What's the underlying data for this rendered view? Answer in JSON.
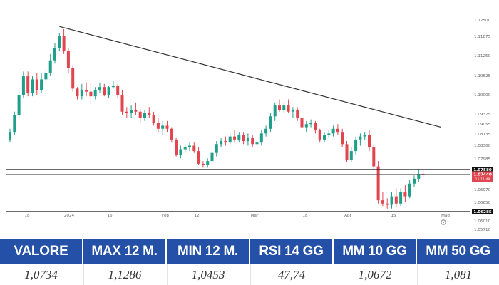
{
  "chart_data": {
    "type": "candlestick",
    "y_ticks": [
      "1.12500",
      "1.11875",
      "1.11250",
      "1.10625",
      "1.10000",
      "1.09375",
      "1.09055",
      "1.08735",
      "1.08360",
      "1.07985",
      "1.06970",
      "1.06650",
      "1.06010",
      "1.05710"
    ],
    "x_ticks": [
      "18",
      "2024",
      "16",
      "Feb",
      "12",
      "Mar",
      "18",
      "Apr",
      "15",
      "Mag"
    ],
    "grid": false,
    "candles": [
      [
        1.0855,
        1.089,
        1.0845,
        1.088
      ],
      [
        1.088,
        1.0945,
        1.087,
        1.0935
      ],
      [
        1.0935,
        1.102,
        1.0925,
        1.1
      ],
      [
        1.1,
        1.1075,
        1.099,
        1.106
      ],
      [
        1.106,
        1.1075,
        1.0995,
        1.1005
      ],
      [
        1.1005,
        1.106,
        1.0995,
        1.105
      ],
      [
        1.105,
        1.107,
        1.1,
        1.1015
      ],
      [
        1.1015,
        1.107,
        1.1005,
        1.105
      ],
      [
        1.105,
        1.108,
        1.104,
        1.107
      ],
      [
        1.107,
        1.113,
        1.106,
        1.111
      ],
      [
        1.111,
        1.1165,
        1.11,
        1.115
      ],
      [
        1.115,
        1.12,
        1.114,
        1.119
      ],
      [
        1.119,
        1.1215,
        1.113,
        1.114
      ],
      [
        1.114,
        1.115,
        1.107,
        1.1085
      ],
      [
        1.1085,
        1.1095,
        1.101,
        1.102
      ],
      [
        1.102,
        1.1025,
        1.0985,
        1.0995
      ],
      [
        1.0995,
        1.1035,
        1.0985,
        1.1015
      ],
      [
        1.1015,
        1.104,
        1.0995,
        1.101
      ],
      [
        1.101,
        1.1035,
        1.097,
        1.0995
      ],
      [
        1.0995,
        1.1025,
        1.0985,
        1.1015
      ],
      [
        1.1015,
        1.104,
        1.1005,
        1.1025
      ],
      [
        1.1025,
        1.1035,
        1.0995,
        1.1
      ],
      [
        1.1,
        1.103,
        1.099,
        1.1025
      ],
      [
        1.1025,
        1.1045,
        1.102,
        1.103
      ],
      [
        1.103,
        1.1035,
        1.099,
        1.1
      ],
      [
        1.1,
        1.1015,
        1.0935,
        1.0945
      ],
      [
        1.0945,
        1.096,
        1.0925,
        1.094
      ],
      [
        1.094,
        1.0965,
        1.0925,
        1.095
      ],
      [
        1.095,
        1.0975,
        1.0935,
        1.0945
      ],
      [
        1.0945,
        1.0955,
        1.091,
        1.0925
      ],
      [
        1.0925,
        1.095,
        1.0915,
        1.094
      ],
      [
        1.094,
        1.096,
        1.0925,
        1.0935
      ],
      [
        1.0935,
        1.0945,
        1.09,
        1.091
      ],
      [
        1.091,
        1.0925,
        1.088,
        1.089
      ],
      [
        1.089,
        1.0915,
        1.087,
        1.09
      ],
      [
        1.09,
        1.0915,
        1.088,
        1.089
      ],
      [
        1.089,
        1.0895,
        1.0845,
        1.0855
      ],
      [
        1.0855,
        1.086,
        1.0805,
        1.081
      ],
      [
        1.081,
        1.0835,
        1.08,
        1.0825
      ],
      [
        1.0825,
        1.084,
        1.0815,
        1.083
      ],
      [
        1.083,
        1.0845,
        1.082,
        1.0835
      ],
      [
        1.0835,
        1.0845,
        1.0815,
        1.082
      ],
      [
        1.082,
        1.083,
        1.0775,
        1.078
      ],
      [
        1.078,
        1.079,
        1.0765,
        1.0775
      ],
      [
        1.0775,
        1.08,
        1.0765,
        1.079
      ],
      [
        1.079,
        1.0825,
        1.078,
        1.0815
      ],
      [
        1.0815,
        1.085,
        1.0805,
        1.084
      ],
      [
        1.084,
        1.086,
        1.083,
        1.085
      ],
      [
        1.085,
        1.0865,
        1.0835,
        1.0845
      ],
      [
        1.0845,
        1.0875,
        1.0835,
        1.0865
      ],
      [
        1.0865,
        1.0885,
        1.0845,
        1.0855
      ],
      [
        1.0855,
        1.088,
        1.0845,
        1.087
      ],
      [
        1.087,
        1.088,
        1.084,
        1.085
      ],
      [
        1.085,
        1.0875,
        1.0835,
        1.086
      ],
      [
        1.086,
        1.087,
        1.083,
        1.084
      ],
      [
        1.084,
        1.0855,
        1.083,
        1.0845
      ],
      [
        1.0845,
        1.0885,
        1.0835,
        1.0875
      ],
      [
        1.0875,
        1.09,
        1.0865,
        1.089
      ],
      [
        1.089,
        1.094,
        1.088,
        1.093
      ],
      [
        1.093,
        1.0975,
        1.0915,
        1.0965
      ],
      [
        1.0965,
        1.0985,
        1.0945,
        1.095
      ],
      [
        1.095,
        1.0975,
        1.094,
        1.0965
      ],
      [
        1.0965,
        1.0985,
        1.094,
        1.0945
      ],
      [
        1.0945,
        1.096,
        1.0925,
        1.095
      ],
      [
        1.095,
        1.096,
        1.0915,
        1.0925
      ],
      [
        1.0925,
        1.0935,
        1.0885,
        1.0895
      ],
      [
        1.0895,
        1.0915,
        1.088,
        1.0905
      ],
      [
        1.0905,
        1.092,
        1.0895,
        1.091
      ],
      [
        1.091,
        1.0915,
        1.0875,
        1.0885
      ],
      [
        1.0885,
        1.089,
        1.0845,
        1.0855
      ],
      [
        1.0855,
        1.088,
        1.0845,
        1.087
      ],
      [
        1.087,
        1.0885,
        1.086,
        1.0875
      ],
      [
        1.0875,
        1.09,
        1.0865,
        1.089
      ],
      [
        1.089,
        1.0905,
        1.087,
        1.088
      ],
      [
        1.088,
        1.089,
        1.083,
        1.084
      ],
      [
        1.084,
        1.085,
        1.0785,
        1.0795
      ],
      [
        1.0795,
        1.083,
        1.0785,
        1.082
      ],
      [
        1.082,
        1.0865,
        1.081,
        1.0855
      ],
      [
        1.0855,
        1.0875,
        1.0835,
        1.0865
      ],
      [
        1.0865,
        1.088,
        1.0855,
        1.087
      ],
      [
        1.087,
        1.0885,
        1.082,
        1.083
      ],
      [
        1.083,
        1.084,
        1.076,
        1.077
      ],
      [
        1.077,
        1.079,
        1.066,
        1.067
      ],
      [
        1.067,
        1.069,
        1.065,
        1.066
      ],
      [
        1.066,
        1.0675,
        1.064,
        1.0655
      ],
      [
        1.0655,
        1.069,
        1.064,
        1.068
      ],
      [
        1.068,
        1.07,
        1.0645,
        1.066
      ],
      [
        1.066,
        1.07,
        1.065,
        1.069
      ],
      [
        1.069,
        1.071,
        1.0665,
        1.068
      ],
      [
        1.068,
        1.0725,
        1.0675,
        1.0715
      ],
      [
        1.0715,
        1.074,
        1.0705,
        1.073
      ],
      [
        1.073,
        1.076,
        1.072,
        1.0745
      ],
      [
        1.0745,
        1.0755,
        1.0735,
        1.0744
      ]
    ],
    "levels": [
      {
        "value": 1.0758,
        "label": "1.07580"
      },
      {
        "value": 1.0744,
        "label": "1.07440",
        "sub": "15:11:48"
      },
      {
        "value": 1.0628,
        "label": "1.06285"
      }
    ],
    "trendline": {
      "from": [
        11,
        1.1225
      ],
      "to": [
        96,
        1.0895
      ]
    },
    "colors": {
      "up": "#1f9e89",
      "down": "#e0464f",
      "line": "#333333",
      "price_tag": "#e0464f",
      "level_tag": "#111111"
    }
  },
  "stats": [
    {
      "header": "VALORE",
      "value": "1,0734"
    },
    {
      "header": "MAX 12 M.",
      "value": "1,1286"
    },
    {
      "header": "MIN 12 M.",
      "value": "1,0453"
    },
    {
      "header": "RSI 14 GG",
      "value": "47,74"
    },
    {
      "header": "MM 10 GG",
      "value": "1,0672"
    },
    {
      "header": "MM 50 GG",
      "value": "1,081"
    }
  ],
  "colors": {
    "header_bg": "#2450a8"
  },
  "icons": {
    "settings": "gear-icon"
  }
}
